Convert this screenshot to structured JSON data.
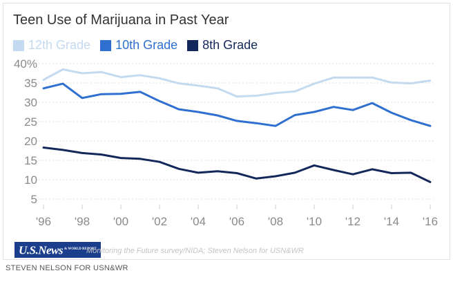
{
  "chart_data": {
    "type": "line",
    "title": "Teen Use of Marijuana in Past Year",
    "categories": [
      "'96",
      "'97",
      "'98",
      "'99",
      "'00",
      "'01",
      "'02",
      "'03",
      "'04",
      "'05",
      "'06",
      "'07",
      "'08",
      "'09",
      "'10",
      "'11",
      "'12",
      "'13",
      "'14",
      "'15",
      "'16"
    ],
    "x_tick_labels": [
      "'96",
      "'98",
      "'00",
      "'02",
      "'04",
      "'06",
      "'08",
      "'10",
      "'12",
      "'14",
      "'16"
    ],
    "y_tick_labels": [
      "5",
      "10",
      "15",
      "20",
      "25",
      "30",
      "35",
      "40%"
    ],
    "ylim": [
      5,
      40
    ],
    "xlabel": "",
    "ylabel": "",
    "grid": true,
    "legend_position": "top-left",
    "series": [
      {
        "name": "12th Grade",
        "color": "#c3daf0",
        "values": [
          35.8,
          38.5,
          37.5,
          37.8,
          36.5,
          37.0,
          36.2,
          34.9,
          34.3,
          33.6,
          31.5,
          31.7,
          32.4,
          32.8,
          34.8,
          36.4,
          36.4,
          36.4,
          35.1,
          34.9,
          35.6
        ]
      },
      {
        "name": "10th Grade",
        "color": "#2e6fd0",
        "values": [
          33.6,
          34.8,
          31.1,
          32.1,
          32.2,
          32.7,
          30.3,
          28.2,
          27.5,
          26.6,
          25.2,
          24.6,
          23.9,
          26.7,
          27.5,
          28.8,
          28.0,
          29.8,
          27.3,
          25.4,
          23.9
        ]
      },
      {
        "name": "8th Grade",
        "color": "#13285a",
        "values": [
          18.3,
          17.7,
          16.9,
          16.5,
          15.6,
          15.4,
          14.6,
          12.8,
          11.8,
          12.2,
          11.7,
          10.3,
          10.9,
          11.8,
          13.7,
          12.5,
          11.4,
          12.7,
          11.7,
          11.8,
          9.4
        ]
      }
    ]
  },
  "footer": {
    "logo_text": "U.S.News",
    "logo_subtext": "& WORLD REPORT",
    "source": "Monitoring the Future survey/NIDA; Steven Nelson for USN&WR",
    "credit": "STEVEN NELSON FOR USN&WR"
  }
}
